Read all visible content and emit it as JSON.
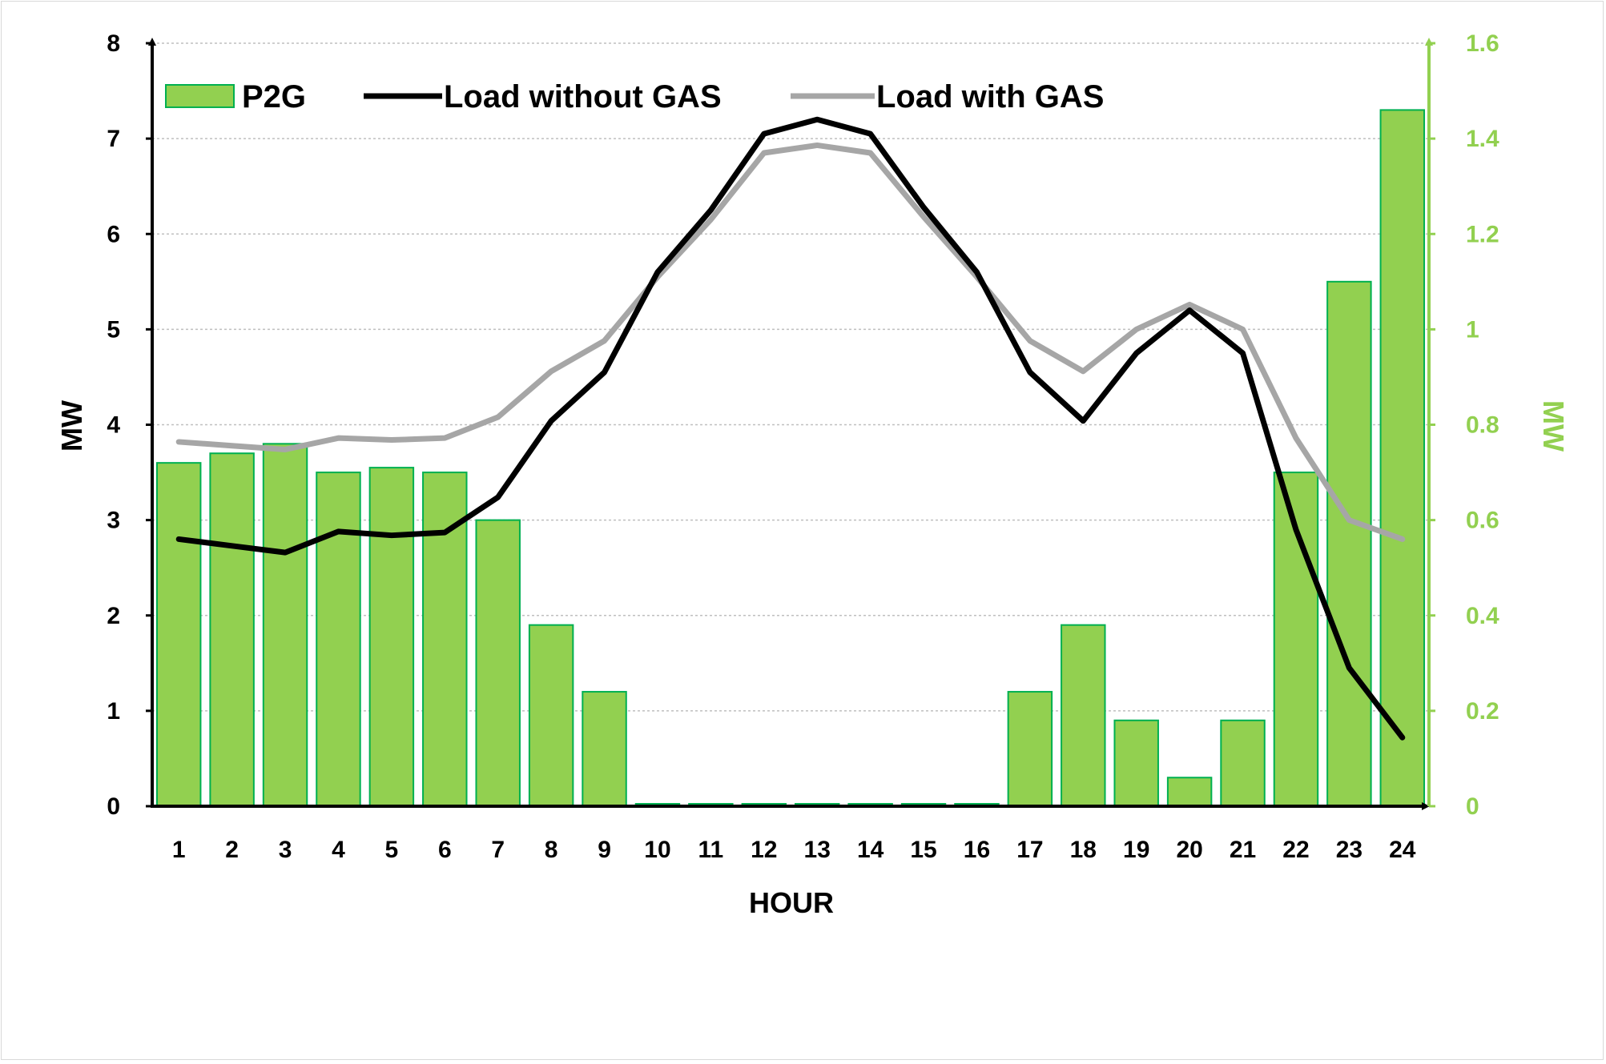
{
  "colors": {
    "bar_fill": "#92d050",
    "bar_stroke": "#00b050",
    "load_without": "#000000",
    "load_with": "#a6a6a6",
    "right_axis": "#92d050",
    "grid": "#bfbfbf"
  },
  "chart_data": {
    "type": "bar+line",
    "categories": [
      "1",
      "2",
      "3",
      "4",
      "5",
      "6",
      "7",
      "8",
      "9",
      "10",
      "11",
      "12",
      "13",
      "14",
      "15",
      "16",
      "17",
      "18",
      "19",
      "20",
      "21",
      "22",
      "23",
      "24"
    ],
    "series": [
      {
        "name": "P2G",
        "type": "bar",
        "axis": "right",
        "values": [
          0.72,
          0.74,
          0.76,
          0.7,
          0.71,
          0.7,
          0.6,
          0.38,
          0.24,
          0.005,
          0.005,
          0.005,
          0.005,
          0.005,
          0.005,
          0.005,
          0.24,
          0.38,
          0.18,
          0.06,
          0.18,
          0.7,
          1.1,
          1.46
        ]
      },
      {
        "name": "Load without GAS",
        "type": "line",
        "axis": "left",
        "values": [
          2.8,
          2.73,
          2.66,
          2.88,
          2.84,
          2.87,
          3.24,
          4.04,
          4.55,
          5.6,
          6.25,
          7.05,
          7.2,
          7.05,
          6.28,
          5.6,
          4.55,
          4.04,
          4.75,
          5.2,
          4.75,
          2.9,
          1.45,
          0.72
        ]
      },
      {
        "name": "Load with GAS",
        "type": "line",
        "axis": "left",
        "values": [
          3.82,
          3.78,
          3.74,
          3.86,
          3.84,
          3.86,
          4.08,
          4.56,
          4.88,
          5.55,
          6.15,
          6.85,
          6.93,
          6.85,
          6.18,
          5.55,
          4.88,
          4.56,
          5.0,
          5.26,
          5.0,
          3.86,
          3.0,
          2.8
        ]
      }
    ],
    "title": "",
    "xlabel": "HOUR",
    "ylabel": "MW",
    "y2label": "MW",
    "ylim": [
      0,
      8
    ],
    "y2lim": [
      0,
      1.6
    ],
    "yticks": [
      "0",
      "1",
      "2",
      "3",
      "4",
      "5",
      "6",
      "7",
      "8"
    ],
    "y2ticks": [
      "0",
      "0.2",
      "0.4",
      "0.6",
      "0.8",
      "1",
      "1.2",
      "1.4",
      "1.6"
    ],
    "grid": true,
    "legend_position": "top"
  }
}
